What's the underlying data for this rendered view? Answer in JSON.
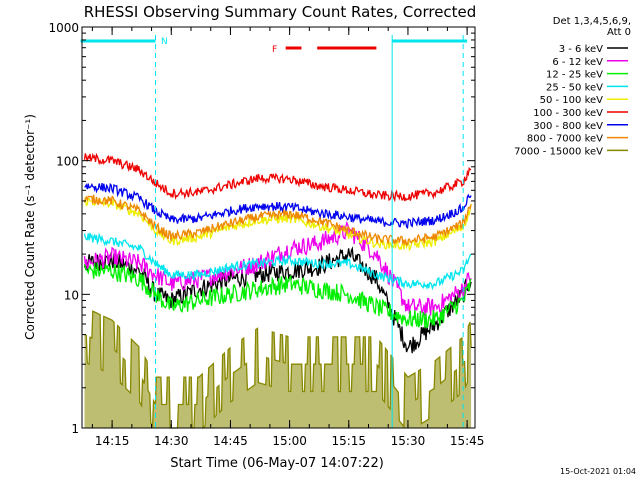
{
  "chart_data": {
    "type": "line",
    "title": "RHESSI Observing Summary Count Rates, Corrected",
    "xlabel": "Start Time (06-May-07 14:07:22)",
    "ylabel": "Corrected Count Rate (s⁻¹ detector⁻¹)",
    "y_scale": "log",
    "ylim": [
      1,
      1000
    ],
    "xlim": [
      "14:07:22",
      "15:47:00"
    ],
    "x_ticks": [
      "14:15",
      "14:30",
      "14:45",
      "15:00",
      "15:15",
      "15:30",
      "15:45"
    ],
    "y_ticks": [
      "1",
      "10",
      "100",
      "1000"
    ],
    "legend_header": [
      "Det 1,3,4,5,6,9,",
      "Att 0"
    ],
    "legend_position": "top-right",
    "timestamp": "15-Oct-2021 01:04",
    "flags": [
      {
        "label": "N",
        "color": "#00e5ee",
        "intervals": [
          [
            "14:07",
            "14:26"
          ],
          [
            "15:26",
            "15:45"
          ]
        ]
      },
      {
        "label": "F",
        "color": "#ee0000",
        "intervals": [
          [
            "14:59",
            "15:03"
          ],
          [
            "15:07",
            "15:22"
          ]
        ]
      }
    ],
    "markers": [
      {
        "time": "14:26",
        "style": "dashed",
        "color": "#00e5ee"
      },
      {
        "time": "15:26",
        "style": "solid",
        "color": "#00e5ee"
      },
      {
        "time": "15:44",
        "style": "dashed",
        "color": "#00e5ee"
      }
    ],
    "x": [
      "14:08",
      "14:15",
      "14:22",
      "14:26",
      "14:30",
      "14:37",
      "14:45",
      "14:52",
      "15:00",
      "15:07",
      "15:15",
      "15:22",
      "15:30",
      "15:37",
      "15:44",
      "15:46"
    ],
    "series": [
      {
        "name": "3 - 6 keV",
        "color": "#000000",
        "values": [
          17,
          18,
          15,
          10,
          9,
          11,
          13,
          14,
          15,
          16,
          20,
          13,
          4,
          6,
          10,
          13
        ]
      },
      {
        "name": "6 - 12 keV",
        "color": "#ee00ee",
        "values": [
          17,
          19,
          17,
          14,
          12,
          13,
          15,
          17,
          22,
          24,
          30,
          20,
          8,
          8,
          11,
          14
        ]
      },
      {
        "name": "12 - 25 keV",
        "color": "#00ee00",
        "values": [
          15,
          15,
          13,
          10,
          8,
          9,
          10,
          11,
          12,
          11,
          10,
          8,
          6.5,
          6.5,
          9,
          12
        ]
      },
      {
        "name": "25 - 50 keV",
        "color": "#00e5ee",
        "values": [
          27,
          25,
          22,
          17,
          14,
          14,
          16,
          17,
          18,
          17,
          17,
          14,
          12,
          12,
          15,
          20
        ]
      },
      {
        "name": "50 - 100 keV",
        "color": "#eeee00",
        "values": [
          50,
          48,
          40,
          30,
          25,
          27,
          32,
          36,
          37,
          33,
          28,
          24,
          23,
          25,
          32,
          45
        ]
      },
      {
        "name": "100 - 300 keV",
        "color": "#ee0000",
        "values": [
          105,
          100,
          85,
          68,
          57,
          58,
          66,
          74,
          73,
          65,
          60,
          55,
          54,
          58,
          70,
          90
        ]
      },
      {
        "name": "300 - 800 keV",
        "color": "#0000ee",
        "values": [
          65,
          62,
          52,
          42,
          36,
          37,
          42,
          46,
          45,
          41,
          38,
          35,
          34,
          36,
          44,
          58
        ]
      },
      {
        "name": "800 - 7000 keV",
        "color": "#ee8800",
        "values": [
          52,
          50,
          42,
          32,
          27,
          29,
          34,
          38,
          40,
          36,
          30,
          26,
          25,
          27,
          34,
          48
        ]
      },
      {
        "name": "7000 - 15000 keV",
        "color": "#888800",
        "values": [
          5,
          4,
          2.5,
          1.5,
          1.5,
          1.5,
          2.5,
          3.5,
          3,
          3,
          3,
          3,
          1.5,
          2,
          3,
          4
        ]
      }
    ]
  }
}
